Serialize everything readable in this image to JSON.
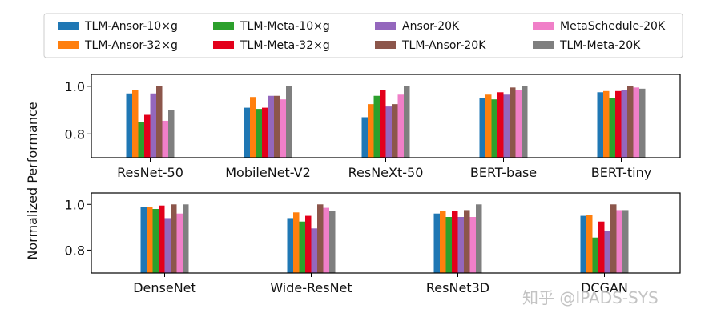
{
  "chart_data": {
    "type": "bar",
    "ylabel": "Normalized Performance",
    "legend_position": "top",
    "series": [
      {
        "name": "TLM-Ansor-10×g",
        "color": "#1f77b4"
      },
      {
        "name": "TLM-Ansor-32×g",
        "color": "#ff7f0e"
      },
      {
        "name": "TLM-Meta-10×g",
        "color": "#2ca02c"
      },
      {
        "name": "TLM-Meta-32×g",
        "color": "#e3001b"
      },
      {
        "name": "Ansor-20K",
        "color": "#9467bd"
      },
      {
        "name": "TLM-Ansor-20K",
        "color": "#8c564b"
      },
      {
        "name": "MetaSchedule-20K",
        "color": "#f07fc8"
      },
      {
        "name": "TLM-Meta-20K",
        "color": "#7f7f7f"
      }
    ],
    "panels": [
      {
        "ylim": [
          0.7,
          1.05
        ],
        "yticks": [
          "0.8",
          "1.0"
        ],
        "ytick_values": [
          0.8,
          1.0
        ],
        "categories": [
          "ResNet-50",
          "MobileNet-V2",
          "ResNeXt-50",
          "BERT-base",
          "BERT-tiny"
        ],
        "values": [
          [
            0.97,
            0.985,
            0.85,
            0.88,
            0.97,
            1.0,
            0.855,
            0.9
          ],
          [
            0.91,
            0.955,
            0.905,
            0.91,
            0.96,
            0.96,
            0.945,
            1.0
          ],
          [
            0.87,
            0.925,
            0.96,
            0.985,
            0.915,
            0.925,
            0.965,
            1.0
          ],
          [
            0.95,
            0.965,
            0.945,
            0.975,
            0.965,
            0.995,
            0.985,
            1.0
          ],
          [
            0.975,
            0.98,
            0.95,
            0.98,
            0.985,
            1.0,
            0.995,
            0.99
          ]
        ]
      },
      {
        "ylim": [
          0.7,
          1.05
        ],
        "yticks": [
          "0.8",
          "1.0"
        ],
        "ytick_values": [
          0.8,
          1.0
        ],
        "categories": [
          "DenseNet",
          "Wide-ResNet",
          "ResNet3D",
          "DCGAN"
        ],
        "values": [
          [
            0.99,
            0.99,
            0.98,
            0.995,
            0.94,
            1.0,
            0.96,
            1.0
          ],
          [
            0.94,
            0.965,
            0.925,
            0.95,
            0.895,
            1.0,
            0.985,
            0.97
          ],
          [
            0.96,
            0.97,
            0.945,
            0.97,
            0.945,
            0.975,
            0.945,
            1.0
          ],
          [
            0.95,
            0.955,
            0.855,
            0.925,
            0.885,
            1.0,
            0.975,
            0.975
          ]
        ]
      }
    ]
  },
  "watermark": "知乎 @IPADS-SYS"
}
